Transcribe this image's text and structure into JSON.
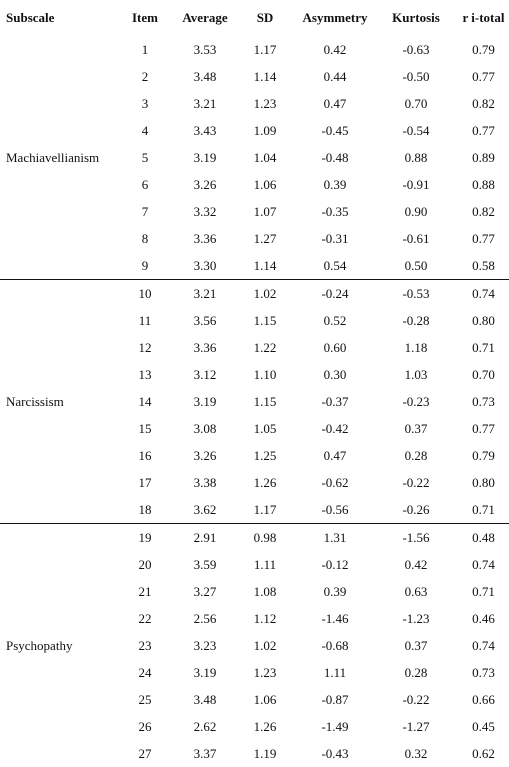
{
  "table": {
    "headers": [
      "Subscale",
      "Item",
      "Average",
      "SD",
      "Asymmetry",
      "Kurtosis",
      "r i-total"
    ],
    "groups": [
      {
        "subscale": "Machiavellianism",
        "rows": [
          [
            "1",
            "3.53",
            "1.17",
            "0.42",
            "-0.63",
            "0.79"
          ],
          [
            "2",
            "3.48",
            "1.14",
            "0.44",
            "-0.50",
            "0.77"
          ],
          [
            "3",
            "3.21",
            "1.23",
            "0.47",
            "0.70",
            "0.82"
          ],
          [
            "4",
            "3.43",
            "1.09",
            "-0.45",
            "-0.54",
            "0.77"
          ],
          [
            "5",
            "3.19",
            "1.04",
            "-0.48",
            "0.88",
            "0.89"
          ],
          [
            "6",
            "3.26",
            "1.06",
            "0.39",
            "-0.91",
            "0.88"
          ],
          [
            "7",
            "3.32",
            "1.07",
            "-0.35",
            "0.90",
            "0.82"
          ],
          [
            "8",
            "3.36",
            "1.27",
            "-0.31",
            "-0.61",
            "0.77"
          ],
          [
            "9",
            "3.30",
            "1.14",
            "0.54",
            "0.50",
            "0.58"
          ]
        ]
      },
      {
        "subscale": "Narcissism",
        "rows": [
          [
            "10",
            "3.21",
            "1.02",
            "-0.24",
            "-0.53",
            "0.74"
          ],
          [
            "11",
            "3.56",
            "1.15",
            "0.52",
            "-0.28",
            "0.80"
          ],
          [
            "12",
            "3.36",
            "1.22",
            "0.60",
            "1.18",
            "0.71"
          ],
          [
            "13",
            "3.12",
            "1.10",
            "0.30",
            "1.03",
            "0.70"
          ],
          [
            "14",
            "3.19",
            "1.15",
            "-0.37",
            "-0.23",
            "0.73"
          ],
          [
            "15",
            "3.08",
            "1.05",
            "-0.42",
            "0.37",
            "0.77"
          ],
          [
            "16",
            "3.26",
            "1.25",
            "0.47",
            "0.28",
            "0.79"
          ],
          [
            "17",
            "3.38",
            "1.26",
            "-0.62",
            "-0.22",
            "0.80"
          ],
          [
            "18",
            "3.62",
            "1.17",
            "-0.56",
            "-0.26",
            "0.71"
          ]
        ]
      },
      {
        "subscale": "Psychopathy",
        "rows": [
          [
            "19",
            "2.91",
            "0.98",
            "1.31",
            "-1.56",
            "0.48"
          ],
          [
            "20",
            "3.59",
            "1.11",
            "-0.12",
            "0.42",
            "0.74"
          ],
          [
            "21",
            "3.27",
            "1.08",
            "0.39",
            "0.63",
            "0.71"
          ],
          [
            "22",
            "2.56",
            "1.12",
            "-1.46",
            "-1.23",
            "0.46"
          ],
          [
            "23",
            "3.23",
            "1.02",
            "-0.68",
            "0.37",
            "0.74"
          ],
          [
            "24",
            "3.19",
            "1.23",
            "1.11",
            "0.28",
            "0.73"
          ],
          [
            "25",
            "3.48",
            "1.06",
            "-0.87",
            "-0.22",
            "0.66"
          ],
          [
            "26",
            "2.62",
            "1.26",
            "-1.49",
            "-1.27",
            "0.45"
          ],
          [
            "27",
            "3.37",
            "1.19",
            "-0.43",
            "0.32",
            "0.62"
          ]
        ]
      }
    ]
  }
}
